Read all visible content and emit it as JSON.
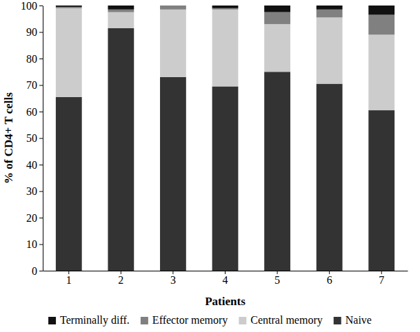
{
  "chart_data": {
    "type": "bar",
    "stacked": true,
    "x_label": "Patients",
    "y_label": "% of CD4+ T cells",
    "categories": [
      "1",
      "2",
      "3",
      "4",
      "5",
      "6",
      "7"
    ],
    "series": [
      {
        "name": "Terminally diff.",
        "color": "#111111",
        "values": [
          0.5,
          1.5,
          0,
          1,
          2.5,
          1.5,
          3.5
        ]
      },
      {
        "name": "Effector memory",
        "color": "#808080",
        "values": [
          0.5,
          1,
          1.5,
          0.5,
          4.5,
          3,
          7.5
        ]
      },
      {
        "name": "Central memory",
        "color": "#cccccc",
        "values": [
          33.5,
          6,
          25.5,
          29,
          18,
          25,
          28.5
        ]
      },
      {
        "name": "Naive",
        "color": "#333333",
        "values": [
          65.5,
          91.5,
          73,
          69.5,
          75,
          70.5,
          60.5
        ]
      }
    ],
    "ylim": [
      0,
      100
    ],
    "yticks": [
      0,
      10,
      20,
      30,
      40,
      50,
      60,
      70,
      80,
      90,
      100
    ],
    "legend": "bottom",
    "grid": false
  }
}
